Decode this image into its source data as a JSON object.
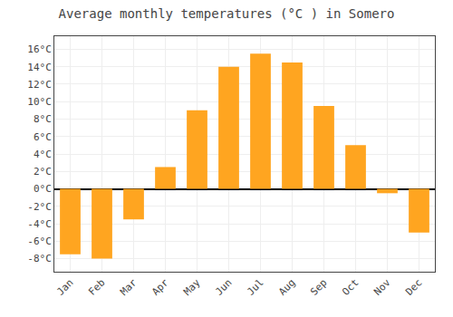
{
  "chart_data": {
    "type": "bar",
    "title": "Average monthly temperatures (°C ) in Somero",
    "categories": [
      "Jan",
      "Feb",
      "Mar",
      "Apr",
      "May",
      "Jun",
      "Jul",
      "Aug",
      "Sep",
      "Oct",
      "Nov",
      "Dec"
    ],
    "values": [
      -7.5,
      -8.0,
      -3.5,
      2.5,
      9.0,
      14.0,
      15.5,
      14.5,
      9.5,
      5.0,
      -0.5,
      -5.0
    ],
    "color": "#FFA520",
    "ylim": [
      -9.5,
      17.5
    ],
    "yticks": [
      {
        "value": -8,
        "label": "-8°C"
      },
      {
        "value": -6,
        "label": "-6°C"
      },
      {
        "value": -4,
        "label": "-4°C"
      },
      {
        "value": -2,
        "label": "-2°C"
      },
      {
        "value": 0,
        "label": "0°C"
      },
      {
        "value": 2,
        "label": "2°C"
      },
      {
        "value": 4,
        "label": "4°C"
      },
      {
        "value": 6,
        "label": "6°C"
      },
      {
        "value": 8,
        "label": "8°C"
      },
      {
        "value": 10,
        "label": "10°C"
      },
      {
        "value": 12,
        "label": "12°C"
      },
      {
        "value": 14,
        "label": "14°C"
      },
      {
        "value": 16,
        "label": "16°C"
      }
    ],
    "grid": true
  }
}
